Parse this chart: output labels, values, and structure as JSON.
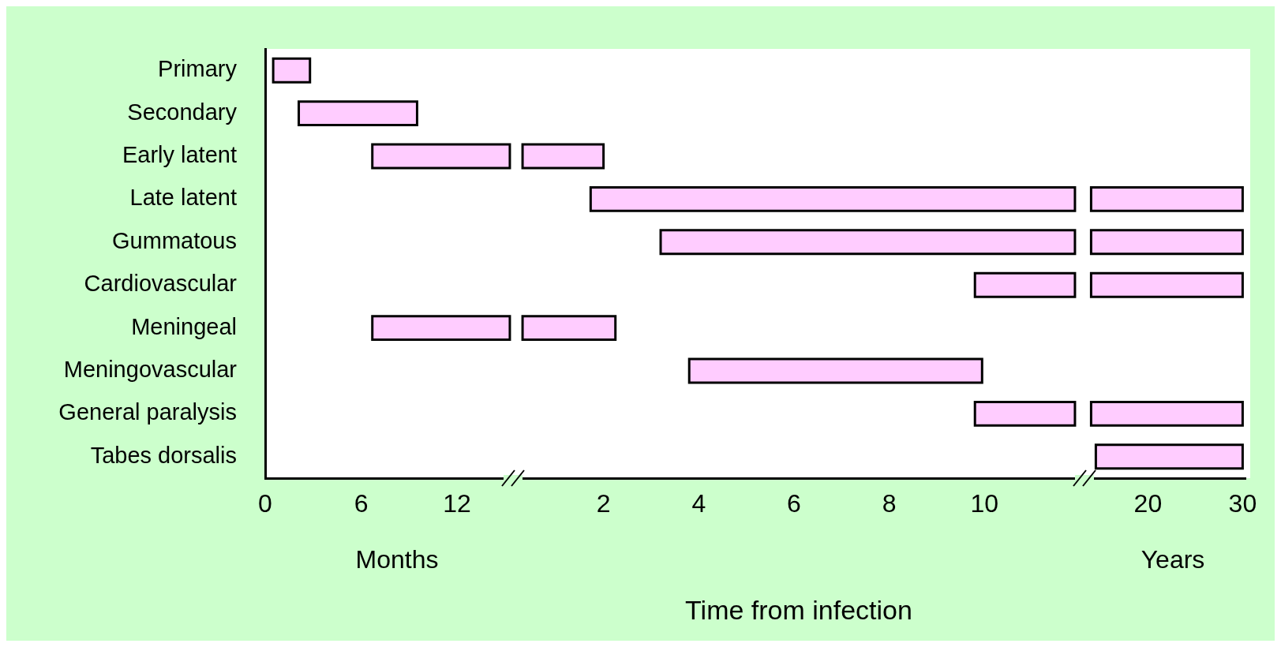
{
  "chart_data": [
    {
      "type": "bar",
      "orientation": "horizontal",
      "categories": [
        "Primary",
        "Secondary",
        "Early latent",
        "Late latent",
        "Gummatous",
        "Cardiovascular",
        "Meningeal",
        "Meningovascular",
        "General paralysis",
        "Tabes dorsalis"
      ],
      "base": [
        0.5,
        2.1,
        6.7,
        null,
        null,
        null,
        6.7,
        null,
        null,
        null
      ],
      "values": [
        2.3,
        7.4,
        8.6,
        null,
        null,
        null,
        8.6,
        null,
        null,
        null
      ],
      "color": "#ffccff",
      "xlim": [
        0,
        15.5
      ],
      "xticks": [
        0,
        6,
        12
      ],
      "annotations": [
        "Months"
      ]
    },
    {
      "type": "bar",
      "orientation": "horizontal",
      "xlabel": "Time from infection",
      "categories": [
        null,
        null,
        null,
        null,
        null,
        null,
        null,
        null,
        null,
        null
      ],
      "base": [
        null,
        null,
        0.3,
        1.73,
        3.2,
        9.8,
        0.3,
        3.8,
        9.8,
        null
      ],
      "values": [
        null,
        null,
        1.7,
        10.17,
        8.7,
        2.1,
        1.95,
        6.15,
        2.1,
        null
      ],
      "color": "#ffccff",
      "xlim": [
        0.1,
        12.1
      ],
      "xticks": [
        2,
        4,
        6,
        8,
        10
      ],
      "tick_labels": "x"
    },
    {
      "type": "bar",
      "orientation": "horizontal",
      "categories": [
        null,
        null,
        null,
        null,
        null,
        null,
        null,
        null,
        null,
        null
      ],
      "base": [
        null,
        null,
        null,
        14,
        14,
        14,
        null,
        null,
        14,
        14.5
      ],
      "values": [
        null,
        null,
        null,
        16,
        16,
        16,
        null,
        null,
        16,
        15.5
      ],
      "color": "#ffccff",
      "xlim": [
        13.3,
        30.3
      ],
      "xticks": [
        20,
        30
      ],
      "tick_labels": "x",
      "annotations": [
        "Years"
      ]
    }
  ]
}
